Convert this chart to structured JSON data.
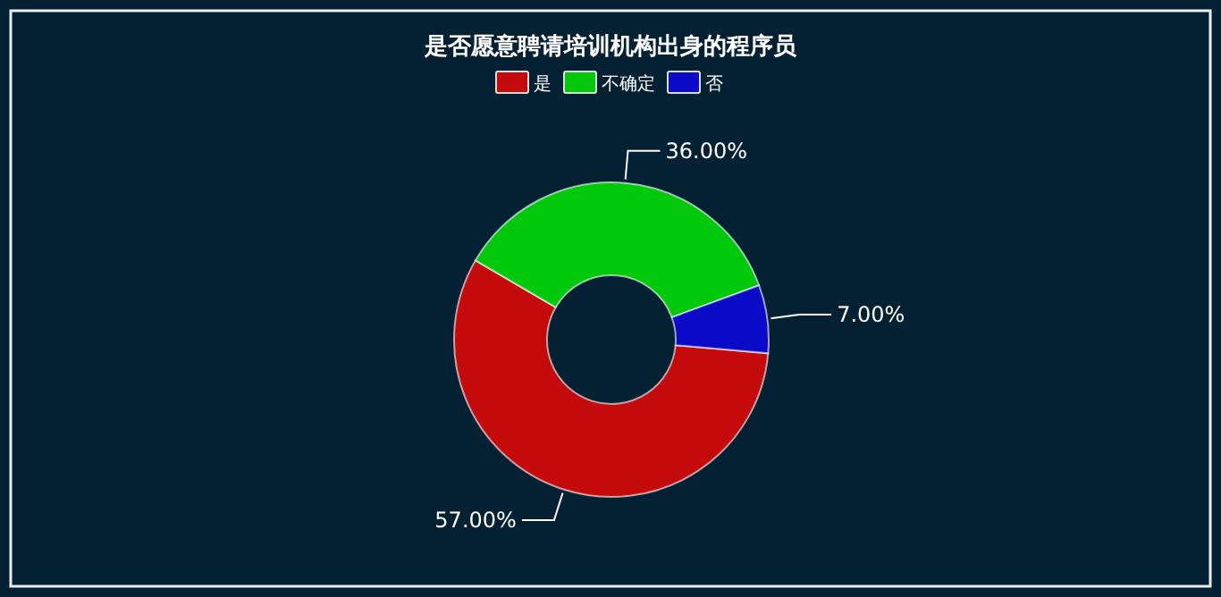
{
  "chart_data": {
    "type": "donut",
    "title": "是否愿意聘请培训机构出身的程序员",
    "categories": [
      "是",
      "不确定",
      "否"
    ],
    "values": [
      57,
      36,
      7
    ],
    "colors": [
      "#c40a0a",
      "#00c80a",
      "#0a0ac8"
    ],
    "value_labels": [
      "57.00%",
      "36.00%",
      "7.00%"
    ],
    "legend": "top"
  }
}
